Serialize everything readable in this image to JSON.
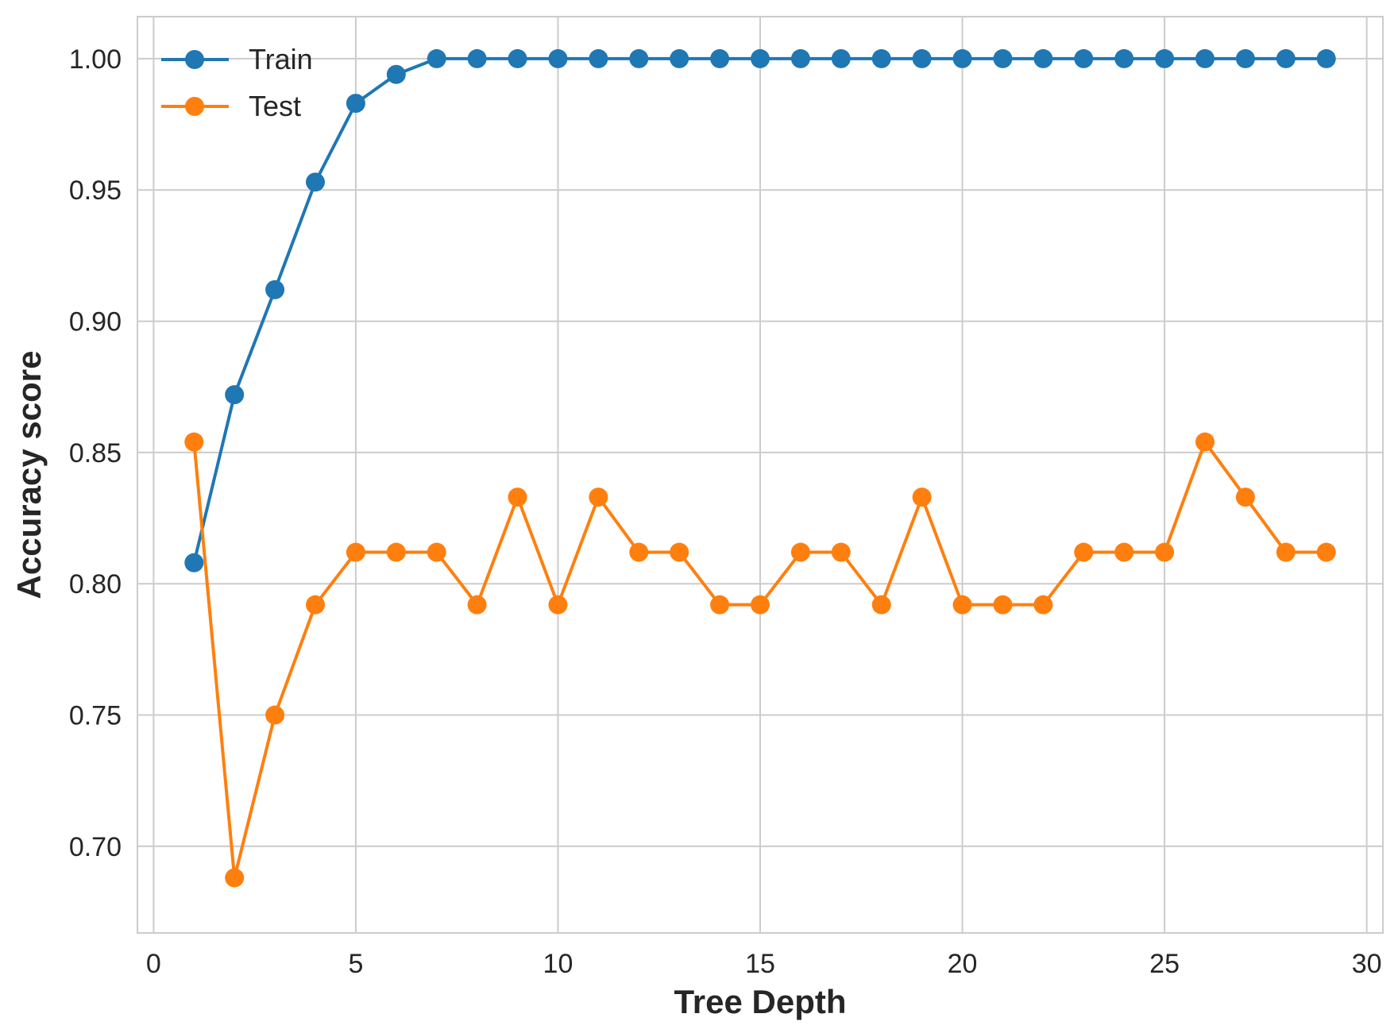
{
  "chart_data": {
    "type": "line",
    "title": "",
    "xlabel": "Tree Depth",
    "ylabel": "Accuracy score",
    "xlim": [
      -0.4,
      30.4
    ],
    "ylim": [
      0.667,
      1.016
    ],
    "xticks": [
      0,
      5,
      10,
      15,
      20,
      25,
      30
    ],
    "xtick_labels": [
      "0",
      "5",
      "10",
      "15",
      "20",
      "25",
      "30"
    ],
    "yticks": [
      0.7,
      0.75,
      0.8,
      0.85,
      0.9,
      0.95,
      1.0
    ],
    "ytick_labels": [
      "0.70",
      "0.75",
      "0.80",
      "0.85",
      "0.90",
      "0.95",
      "1.00"
    ],
    "grid": true,
    "legend_position": "top-left",
    "x": [
      1,
      2,
      3,
      4,
      5,
      6,
      7,
      8,
      9,
      10,
      11,
      12,
      13,
      14,
      15,
      16,
      17,
      18,
      19,
      20,
      21,
      22,
      23,
      24,
      25,
      26,
      27,
      28,
      29
    ],
    "series": [
      {
        "name": "Train",
        "color": "#1f77b4",
        "marker": "circle",
        "values": [
          0.808,
          0.872,
          0.912,
          0.953,
          0.983,
          0.994,
          1.0,
          1.0,
          1.0,
          1.0,
          1.0,
          1.0,
          1.0,
          1.0,
          1.0,
          1.0,
          1.0,
          1.0,
          1.0,
          1.0,
          1.0,
          1.0,
          1.0,
          1.0,
          1.0,
          1.0,
          1.0,
          1.0,
          1.0
        ]
      },
      {
        "name": "Test",
        "color": "#ff7f0e",
        "marker": "circle",
        "values": [
          0.854,
          0.688,
          0.75,
          0.792,
          0.812,
          0.812,
          0.812,
          0.792,
          0.833,
          0.792,
          0.833,
          0.812,
          0.812,
          0.792,
          0.792,
          0.812,
          0.812,
          0.792,
          0.833,
          0.792,
          0.792,
          0.792,
          0.812,
          0.812,
          0.812,
          0.854,
          0.833,
          0.812,
          0.812
        ]
      }
    ]
  }
}
